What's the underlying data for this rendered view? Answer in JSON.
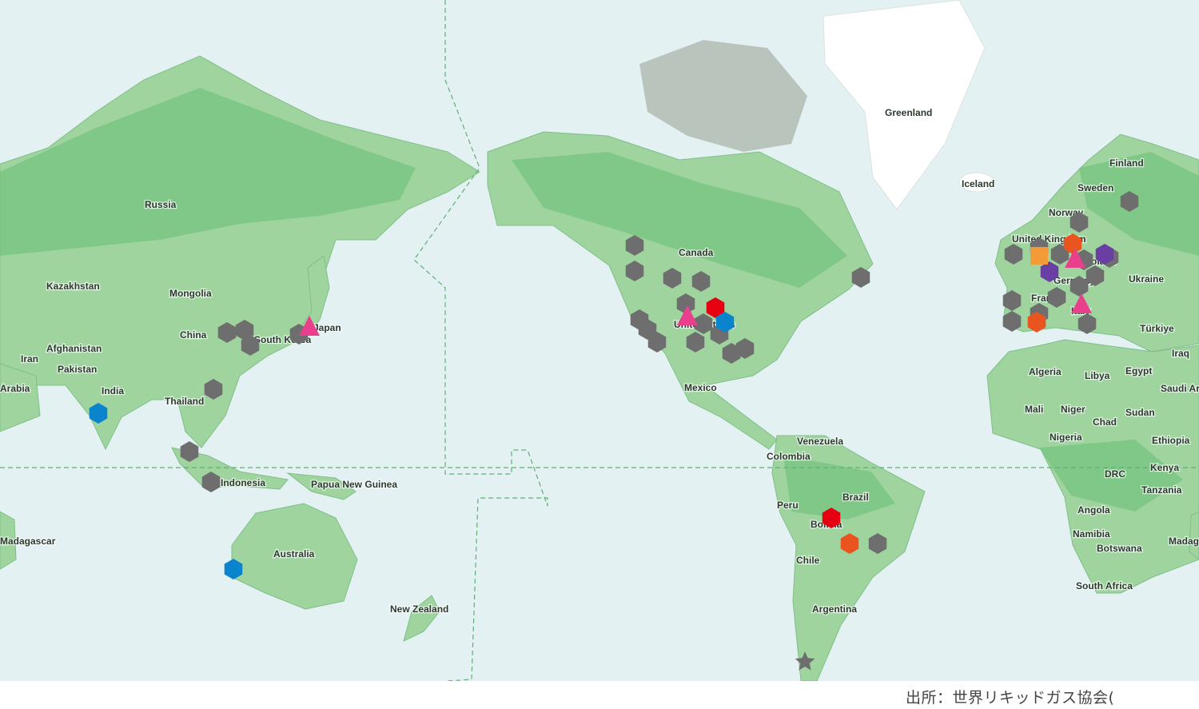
{
  "map": {
    "country_labels": [
      "Greenland",
      "Iceland",
      "Finland",
      "Sweden",
      "Norway",
      "United Kingdom",
      "Poland",
      "Germany",
      "France",
      "Italy",
      "Ukraine",
      "Türkiye",
      "Iraq",
      "Saudi Arabia",
      "Egypt",
      "Libya",
      "Algeria",
      "Mali",
      "Niger",
      "Chad",
      "Sudan",
      "Nigeria",
      "Ethiopia",
      "Kenya",
      "DRC",
      "Tanzania",
      "Angola",
      "Namibia",
      "Botswana",
      "South Africa",
      "Madagascar",
      "Russia",
      "Kazakhstan",
      "Mongolia",
      "China",
      "South Korea",
      "Japan",
      "Afghanistan",
      "Iran",
      "Pakistan",
      "India",
      "Arabia",
      "Thailand",
      "Indonesia",
      "Papua New Guinea",
      "Australia",
      "New Zealand",
      "Canada",
      "United States",
      "Mexico",
      "Venezuela",
      "Colombia",
      "Brazil",
      "Peru",
      "Bolivia",
      "Chile",
      "Argentina",
      "Madagascar"
    ],
    "colors": {
      "ocean": "#e4f1f3",
      "land": "#9fd49f",
      "land_dark": "#6cbf78",
      "ice": "#ffffff",
      "arctic": "#b9c4bc"
    },
    "marker_colors": {
      "gray": "#6e6e6e",
      "red": "#e60012",
      "orange": "#e9541f",
      "blue": "#0a84cc",
      "purple": "#6a3fa3",
      "pink": "#e8408d",
      "amber": "#f29b38"
    }
  },
  "caption": "出所：世界リキッドガス協会("
}
